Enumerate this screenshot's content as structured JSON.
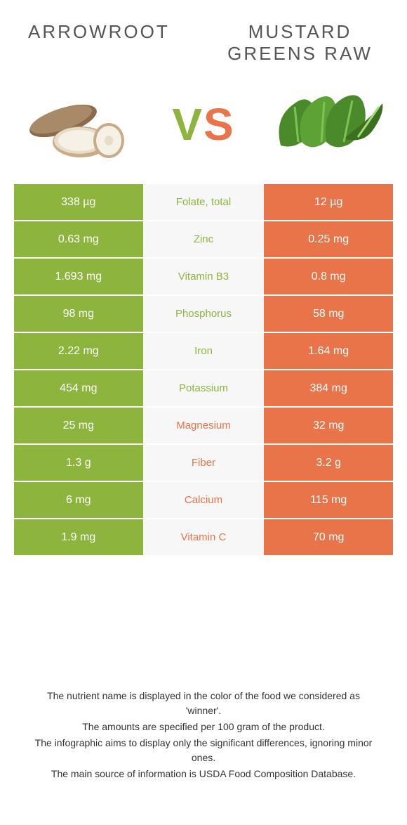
{
  "colors": {
    "left": "#8db53e",
    "right": "#e9744a",
    "mid_bg": "#f7f7f7"
  },
  "header": {
    "left_title": "Arrowroot",
    "right_title": "Mustard Greens Raw",
    "vs": "VS"
  },
  "rows": [
    {
      "left": "338 µg",
      "label": "Folate, total",
      "right": "12 µg",
      "winner": "left"
    },
    {
      "left": "0.63 mg",
      "label": "Zinc",
      "right": "0.25 mg",
      "winner": "left"
    },
    {
      "left": "1.693 mg",
      "label": "Vitamin B3",
      "right": "0.8 mg",
      "winner": "left"
    },
    {
      "left": "98 mg",
      "label": "Phosphorus",
      "right": "58 mg",
      "winner": "left"
    },
    {
      "left": "2.22 mg",
      "label": "Iron",
      "right": "1.64 mg",
      "winner": "left"
    },
    {
      "left": "454 mg",
      "label": "Potassium",
      "right": "384 mg",
      "winner": "left"
    },
    {
      "left": "25 mg",
      "label": "Magnesium",
      "right": "32 mg",
      "winner": "right"
    },
    {
      "left": "1.3 g",
      "label": "Fiber",
      "right": "3.2 g",
      "winner": "right"
    },
    {
      "left": "6 mg",
      "label": "Calcium",
      "right": "115 mg",
      "winner": "right"
    },
    {
      "left": "1.9 mg",
      "label": "Vitamin C",
      "right": "70 mg",
      "winner": "right"
    }
  ],
  "footer": {
    "line1": "The nutrient name is displayed in the color of the food we considered as 'winner'.",
    "line2": "The amounts are specified per 100 gram of the product.",
    "line3": "The infographic aims to display only the significant differences, ignoring minor ones.",
    "line4": "The main source of information is USDA Food Composition Database."
  }
}
